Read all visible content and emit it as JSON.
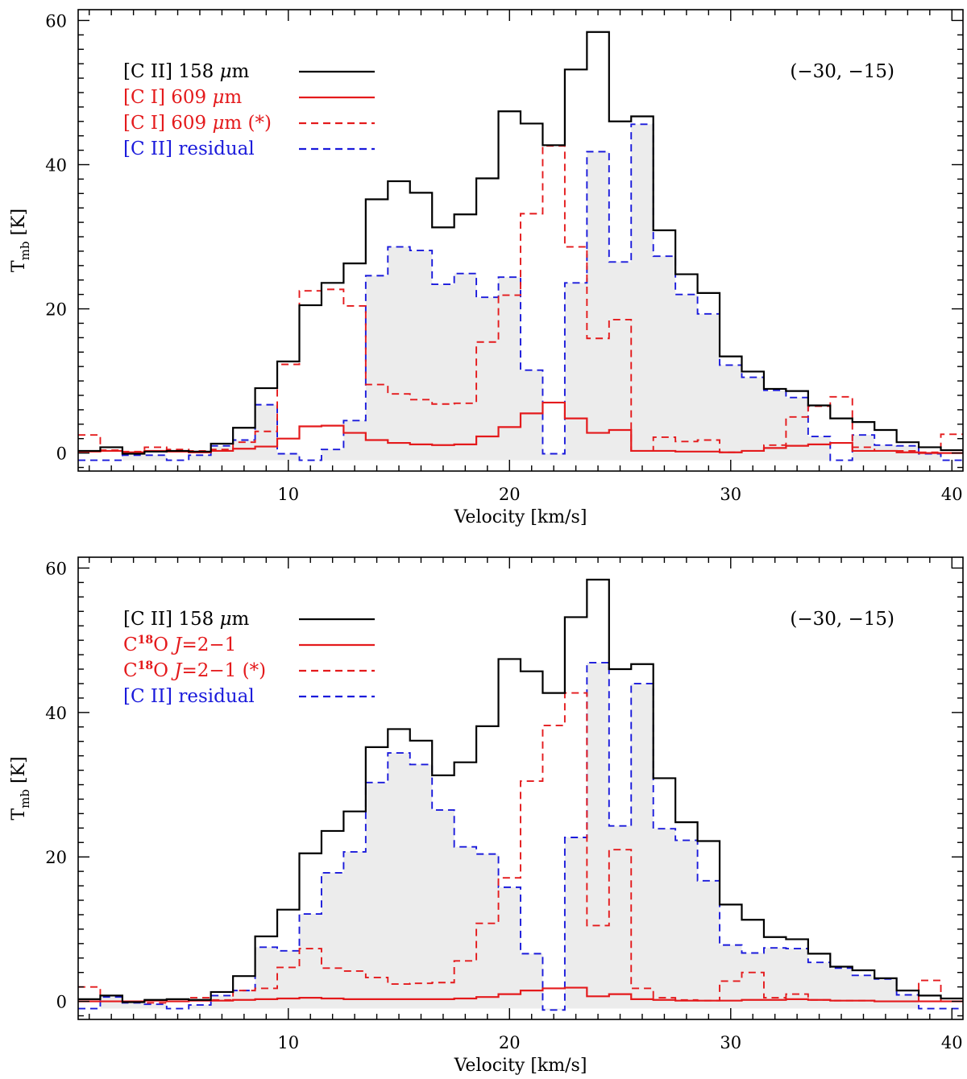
{
  "chart_data": [
    {
      "type": "line",
      "subtype": "step-histogram",
      "panel": "top",
      "position_label": "(−30, −15)",
      "xlabel": "Velocity [km/s]",
      "ylabel": "T",
      "ylabel_sub": "mb",
      "ylabel_unit": " [K]",
      "xlim": [
        0.5,
        40.5
      ],
      "ylim": [
        -2.5,
        61.5
      ],
      "xticks": [
        10,
        20,
        30,
        40
      ],
      "yticks": [
        0,
        20,
        40,
        60
      ],
      "x_start": 0.5,
      "bin_width": 1,
      "fill_series": "[C II] residual",
      "legend": [
        {
          "parts": [
            {
              "t": "[C II] 158 "
            },
            {
              "t": "μ",
              "italic": true
            },
            {
              "t": "m"
            }
          ],
          "color": "#000000",
          "dash": false
        },
        {
          "parts": [
            {
              "t": "[C I] 609 "
            },
            {
              "t": "μ",
              "italic": true
            },
            {
              "t": "m"
            }
          ],
          "color": "#e41a1c",
          "dash": false
        },
        {
          "parts": [
            {
              "t": "[C I] 609 "
            },
            {
              "t": "μ",
              "italic": true
            },
            {
              "t": "m (*)"
            }
          ],
          "color": "#e41a1c",
          "dash": true
        },
        {
          "parts": [
            {
              "t": "[C II] residual"
            }
          ],
          "color": "#1a1adb",
          "dash": true
        }
      ],
      "series": [
        {
          "name": "[C II] 158 μm",
          "color": "#000000",
          "dash": false,
          "values": [
            0.3,
            0.8,
            -0.1,
            0.2,
            0.3,
            0.2,
            1.3,
            3.5,
            9,
            12.7,
            20.5,
            23.6,
            26.3,
            35.2,
            37.7,
            36.1,
            31.3,
            33.1,
            38.1,
            47.4,
            45.7,
            42.7,
            53.2,
            58.4,
            46,
            46.7,
            30.9,
            24.8,
            22.2,
            13.4,
            11.3,
            8.9,
            8.6,
            6.6,
            4.8,
            4.3,
            3.2,
            1.5,
            0.8,
            0.4
          ]
        },
        {
          "name": "[C I] 609 μm",
          "color": "#e41a1c",
          "dash": false,
          "values": [
            0.2,
            0.3,
            0.1,
            0.3,
            0.2,
            0.1,
            0.3,
            0.6,
            0.9,
            2,
            3.7,
            3.8,
            2.8,
            1.8,
            1.4,
            1.2,
            1.1,
            1.2,
            2.3,
            3.6,
            5.5,
            7,
            4.8,
            2.8,
            3.2,
            0.3,
            0.3,
            0.2,
            0.2,
            0.1,
            0.3,
            0.7,
            1,
            1.2,
            1.4,
            0.3,
            0.3,
            0.1,
            0,
            0
          ]
        },
        {
          "name": "[C I] 609 μm (*)",
          "color": "#e41a1c",
          "dash": true,
          "values": [
            2.5,
            0.4,
            0.2,
            0.8,
            0.5,
            0.3,
            0.5,
            1.5,
            3,
            12.3,
            22.5,
            22.7,
            20.4,
            9.5,
            8.2,
            7.4,
            6.8,
            6.9,
            15.4,
            21.9,
            33.2,
            42.6,
            28.6,
            15.9,
            18.5,
            0.3,
            2.2,
            1.6,
            1.8,
            0.1,
            0.3,
            1.1,
            5,
            6.5,
            7.8,
            0.8,
            0.3,
            0.3,
            0.1,
            2.6
          ]
        },
        {
          "name": "[C II] residual",
          "color": "#1a1adb",
          "dash": true,
          "values": [
            -1,
            -1,
            -0.3,
            -0.3,
            -1,
            -0.3,
            1,
            1.8,
            6.7,
            -0.1,
            -1,
            0.5,
            4.5,
            24.6,
            28.6,
            28.1,
            23.4,
            24.9,
            21.6,
            24.4,
            11.5,
            -0.1,
            23.6,
            41.8,
            26.5,
            45.6,
            27.3,
            22,
            19.3,
            12.2,
            10.5,
            8.7,
            7.7,
            2.3,
            -1,
            2.5,
            1.1,
            1,
            -0.1,
            -1
          ]
        }
      ]
    },
    {
      "type": "line",
      "subtype": "step-histogram",
      "panel": "bottom",
      "position_label": "(−30, −15)",
      "xlabel": "Velocity [km/s]",
      "ylabel": "T",
      "ylabel_sub": "mb",
      "ylabel_unit": " [K]",
      "xlim": [
        0.5,
        40.5
      ],
      "ylim": [
        -2.5,
        61.5
      ],
      "xticks": [
        10,
        20,
        30,
        40
      ],
      "yticks": [
        0,
        20,
        40,
        60
      ],
      "x_start": 0.5,
      "bin_width": 1,
      "fill_series": "[C II] residual",
      "legend": [
        {
          "parts": [
            {
              "t": "[C II] 158 "
            },
            {
              "t": "μ",
              "italic": true
            },
            {
              "t": "m"
            }
          ],
          "color": "#000000",
          "dash": false
        },
        {
          "parts": [
            {
              "t": "C"
            },
            {
              "t": "18",
              "sup": true
            },
            {
              "t": "O "
            },
            {
              "t": "J",
              "italic": true
            },
            {
              "t": "=2−1"
            }
          ],
          "color": "#e41a1c",
          "dash": false
        },
        {
          "parts": [
            {
              "t": "C"
            },
            {
              "t": "18",
              "sup": true
            },
            {
              "t": "O "
            },
            {
              "t": "J",
              "italic": true
            },
            {
              "t": "=2−1 (*)"
            }
          ],
          "color": "#e41a1c",
          "dash": true
        },
        {
          "parts": [
            {
              "t": "[C II] residual"
            }
          ],
          "color": "#1a1adb",
          "dash": true
        }
      ],
      "series": [
        {
          "name": "[C II] 158 μm",
          "color": "#000000",
          "dash": false,
          "values": [
            0.3,
            0.8,
            -0.1,
            0.2,
            0.3,
            0.2,
            1.3,
            3.5,
            9,
            12.7,
            20.5,
            23.6,
            26.3,
            35.2,
            37.7,
            36.1,
            31.3,
            33.1,
            38.1,
            47.4,
            45.7,
            42.7,
            53.2,
            58.4,
            46,
            46.7,
            30.9,
            24.8,
            22.2,
            13.4,
            11.3,
            8.9,
            8.6,
            6.6,
            4.8,
            4.3,
            3.2,
            1.5,
            0.8,
            0.4
          ]
        },
        {
          "name": "C18O J=2−1",
          "color": "#e41a1c",
          "dash": false,
          "values": [
            0,
            0,
            0,
            0.1,
            0,
            0.1,
            0.1,
            0.2,
            0.3,
            0.4,
            0.5,
            0.4,
            0.3,
            0.3,
            0.3,
            0.3,
            0.3,
            0.4,
            0.6,
            1,
            1.5,
            1.8,
            1.9,
            0.7,
            1,
            0.3,
            0.2,
            0.1,
            0.1,
            0.1,
            0.2,
            0.2,
            0.3,
            0.2,
            0.1,
            0.1,
            0,
            0,
            0,
            0
          ]
        },
        {
          "name": "C18O J=2−1 (*)",
          "color": "#e41a1c",
          "dash": true,
          "values": [
            2,
            0,
            0,
            -0.2,
            0.3,
            0.5,
            0.2,
            1.5,
            1.8,
            4.7,
            7.3,
            4.6,
            4.2,
            3.3,
            2.4,
            2.5,
            2.6,
            5.6,
            10.8,
            17.1,
            30.5,
            38.2,
            42.7,
            10.5,
            21,
            1.8,
            0.5,
            0.2,
            0.1,
            2.8,
            4,
            0.5,
            1,
            0.2,
            0.1,
            0.1,
            0,
            0,
            2.9,
            0
          ]
        },
        {
          "name": "[C II] residual",
          "color": "#1a1adb",
          "dash": true,
          "values": [
            -1,
            0.6,
            -0.2,
            -0.4,
            -1,
            -0.5,
            0.8,
            1.5,
            7.5,
            7,
            12.1,
            17.8,
            20.7,
            30.3,
            34.4,
            32.8,
            26.5,
            21.4,
            20.4,
            15.8,
            6.6,
            -1.2,
            22.7,
            46.9,
            24.3,
            44,
            23.9,
            22.3,
            16.7,
            7.8,
            6.7,
            7.4,
            7.3,
            5.4,
            4.6,
            3.6,
            3.1,
            0.9,
            -1,
            -1
          ]
        }
      ]
    }
  ]
}
